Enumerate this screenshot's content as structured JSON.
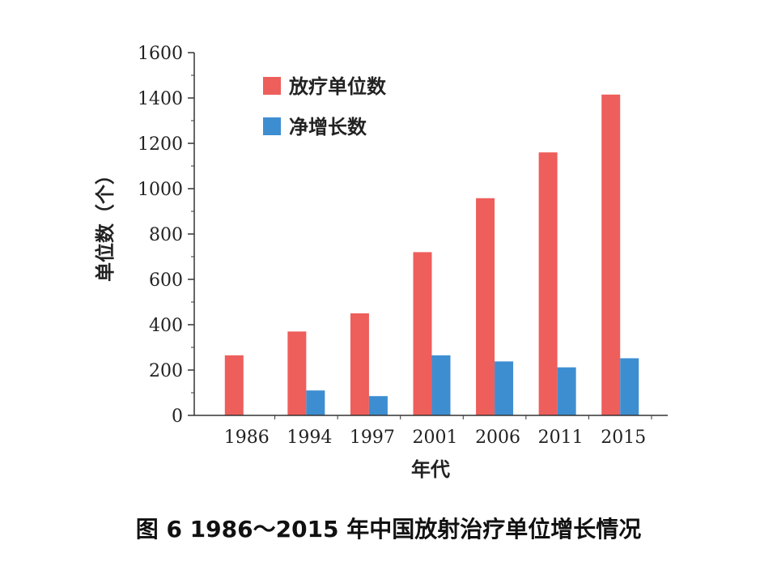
{
  "chart_data": {
    "type": "bar",
    "categories": [
      "1986",
      "1994",
      "1997",
      "2001",
      "2006",
      "2011",
      "2015"
    ],
    "series": [
      {
        "name": "放疗单位数",
        "color": "#ee5e5b",
        "values": [
          265,
          370,
          450,
          720,
          958,
          1160,
          1415
        ]
      },
      {
        "name": "净增长数",
        "color": "#3d8ed1",
        "values": [
          0,
          110,
          85,
          265,
          238,
          212,
          252
        ]
      }
    ],
    "xlabel": "年代",
    "ylabel": "单位数（个）",
    "ylim": [
      0,
      1600
    ],
    "yticks": [
      0,
      200,
      400,
      600,
      800,
      1000,
      1200,
      1400,
      1600
    ],
    "ytick_labels": [
      "0",
      "200",
      "400",
      "600",
      "800",
      "1000",
      "1200",
      "1400",
      "1600"
    ],
    "grid": false,
    "legend_position": "top-left"
  },
  "caption": "图 6 1986～2015 年中国放射治疗单位增长情况"
}
